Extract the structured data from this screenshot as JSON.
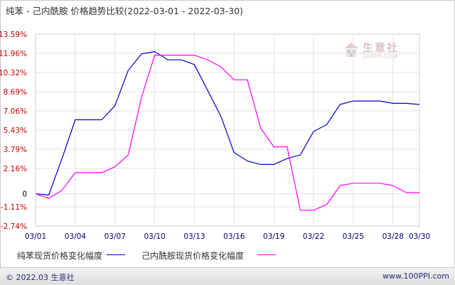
{
  "title": "纯苯 - 己内酰胺 价格趋势比较(2022-03-01 - 2022-03-30)",
  "footer": {
    "copyright": "© 2022.03 生意社",
    "website": "www.100PPI.com"
  },
  "watermark": {
    "name": "生意社",
    "url": "100PPI.COM"
  },
  "colors": {
    "background": "#ffffff",
    "grid": "#e3e3e3",
    "ytick_text": "#cc0000",
    "xtick_text": "#000080",
    "series1": "#0000cc",
    "series2": "#ff00ff"
  },
  "chart_data": {
    "type": "line",
    "title": "纯苯 - 己内酰胺 价格趋势比较(2022-03-01 - 2022-03-30)",
    "x": [
      "03/01",
      "03/02",
      "03/03",
      "03/04",
      "03/05",
      "03/06",
      "03/07",
      "03/08",
      "03/09",
      "03/10",
      "03/11",
      "03/12",
      "03/13",
      "03/14",
      "03/15",
      "03/16",
      "03/17",
      "03/18",
      "03/19",
      "03/20",
      "03/21",
      "03/22",
      "03/23",
      "03/24",
      "03/25",
      "03/26",
      "03/27",
      "03/28",
      "03/29",
      "03/30"
    ],
    "xticks": [
      "03/01",
      "03/04",
      "03/07",
      "03/10",
      "03/13",
      "03/16",
      "03/19",
      "03/22",
      "03/25",
      "03/28",
      "03/30"
    ],
    "yticks": [
      "13.59%",
      "11.96%",
      "10.32%",
      "8.69%",
      "7.06%",
      "5.43%",
      "3.79%",
      "2.16%",
      "0",
      "-1.11%",
      "-2.74%"
    ],
    "ylim": [
      -2.74,
      13.59
    ],
    "grid": true,
    "legend_position": "bottom",
    "series": [
      {
        "name": "纯苯现货价格变化幅度",
        "color": "#0000cc",
        "values": [
          0.0,
          -0.1,
          3.0,
          6.3,
          6.3,
          6.3,
          7.5,
          10.5,
          11.9,
          12.1,
          11.4,
          11.4,
          11.0,
          8.8,
          6.6,
          3.5,
          2.8,
          2.5,
          2.5,
          3.0,
          3.3,
          5.3,
          5.9,
          7.6,
          7.9,
          7.9,
          7.9,
          7.7,
          7.7,
          7.6
        ]
      },
      {
        "name": "己内酰胺现货价格变化幅度",
        "color": "#ff00ff",
        "values": [
          0.0,
          -0.4,
          0.3,
          1.8,
          1.8,
          1.8,
          2.3,
          3.3,
          8.2,
          11.8,
          11.8,
          11.8,
          11.8,
          11.4,
          10.8,
          9.7,
          9.7,
          5.6,
          4.0,
          4.0,
          -1.4,
          -1.4,
          -0.9,
          0.7,
          0.9,
          0.9,
          0.9,
          0.7,
          0.1,
          0.1
        ]
      }
    ]
  }
}
